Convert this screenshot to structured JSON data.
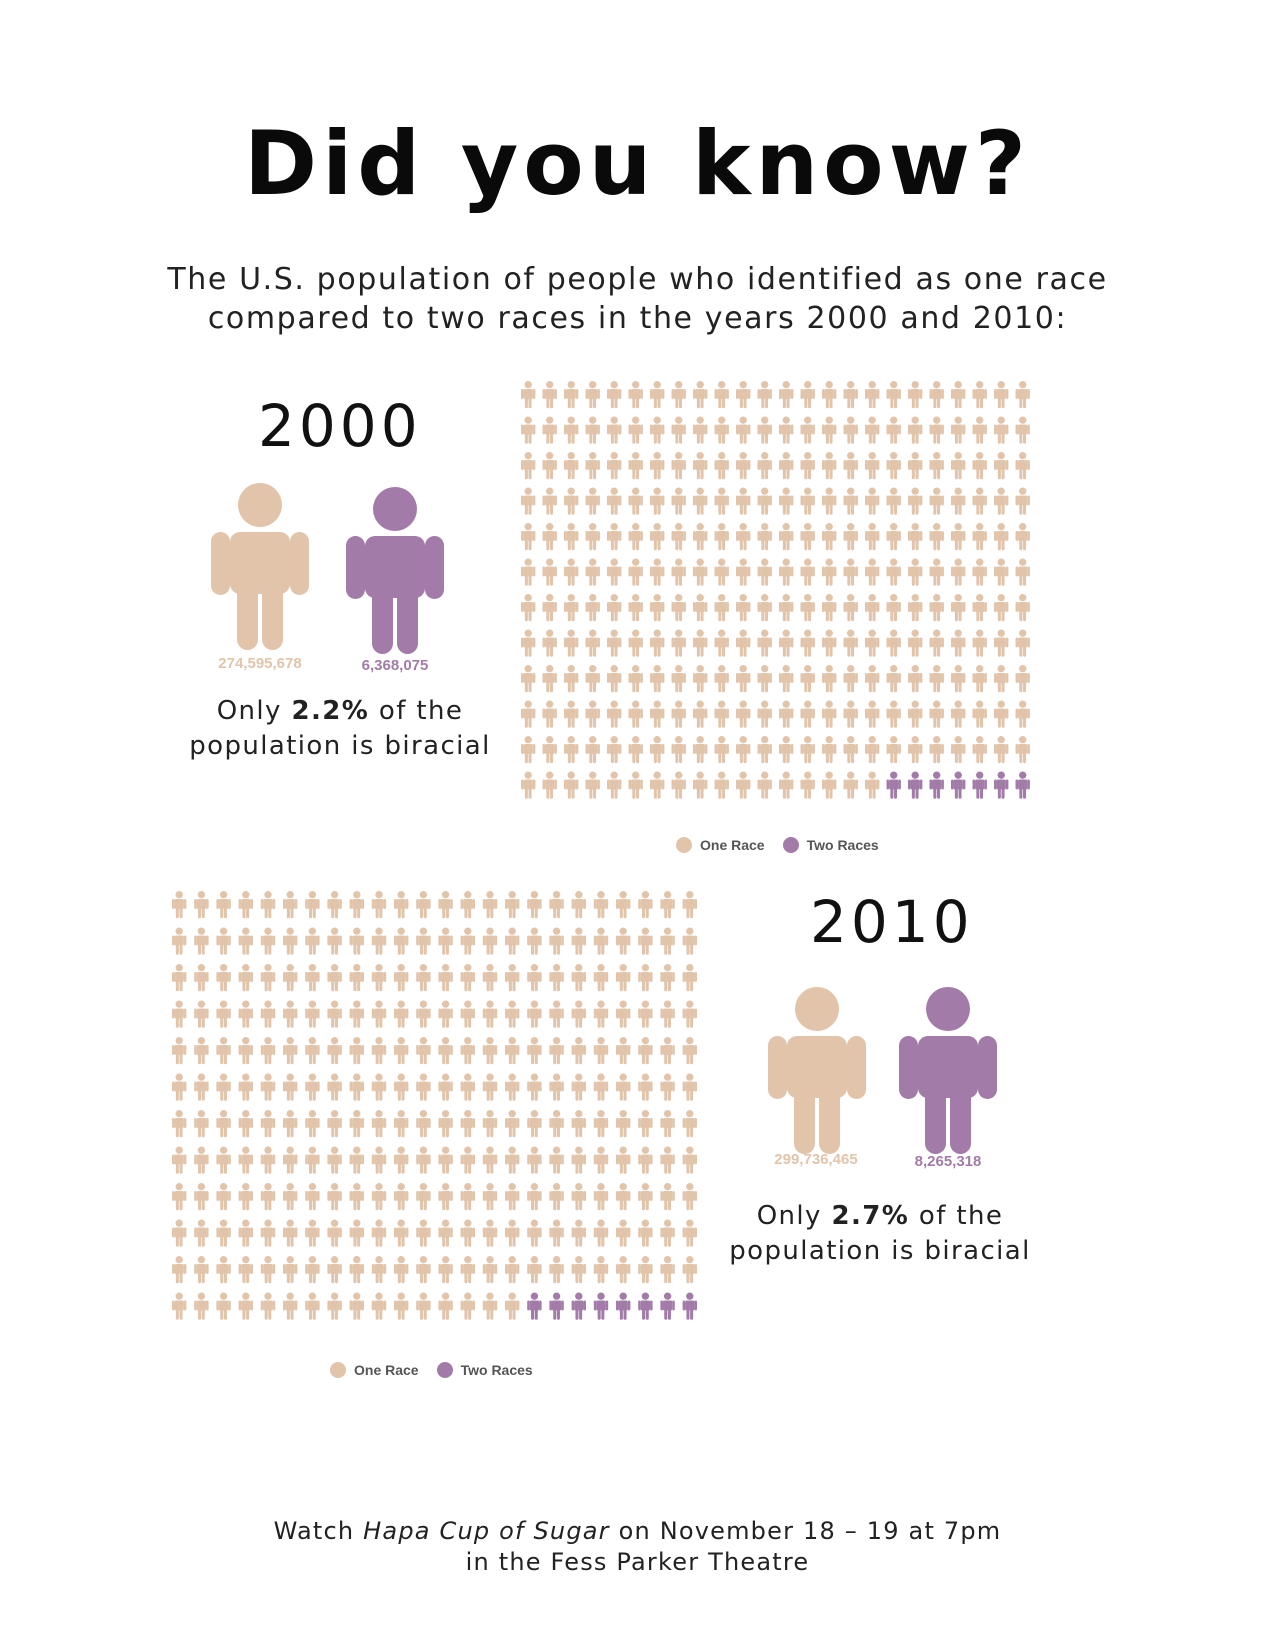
{
  "heading": "Did you know?",
  "subtitle_line1": "The U.S. population of people who identified as one race",
  "subtitle_line2": "compared to two races in the years 2000 and 2010:",
  "colors": {
    "one_race": "#e1c4aa",
    "two_races": "#a37ba9"
  },
  "panels": [
    {
      "year": "2000",
      "one_race_count": "274,595,678",
      "two_races_count": "6,368,075",
      "pct_prefix": "Only ",
      "pct": "2.2%",
      "pct_suffix": " of the",
      "pct_line2": "population is biracial",
      "legend": {
        "one_race": "One Race",
        "two_races": "Two Races"
      }
    },
    {
      "year": "2010",
      "one_race_count": "299,736,465",
      "two_races_count": "8,265,318",
      "pct_prefix": "Only ",
      "pct": "2.7%",
      "pct_suffix": " of the",
      "pct_line2": "population is biracial",
      "legend": {
        "one_race": "One Race",
        "two_races": "Two Races"
      }
    }
  ],
  "chart_data": [
    {
      "type": "pictogram",
      "year": "2000",
      "series": [
        {
          "name": "One Race",
          "value": 274595678
        },
        {
          "name": "Two Races",
          "value": 6368075
        }
      ],
      "grid": {
        "cols": 24,
        "rows": 12
      },
      "icons": {
        "one_race": 281,
        "two_races": 7
      },
      "annotation": "Only 2.2% of the population is biracial"
    },
    {
      "type": "pictogram",
      "year": "2010",
      "series": [
        {
          "name": "One Race",
          "value": 299736465
        },
        {
          "name": "Two Races",
          "value": 8265318
        }
      ],
      "grid": {
        "cols": 24,
        "rows": 12
      },
      "icons": {
        "one_race": 280,
        "two_races": 8
      },
      "annotation": "Only 2.7% of the population is biracial"
    }
  ],
  "footer": {
    "prefix": "Watch ",
    "title": "Hapa Cup of Sugar",
    "suffix": " on November 18 – 19 at 7pm",
    "line2": "in the Fess Parker Theatre"
  }
}
